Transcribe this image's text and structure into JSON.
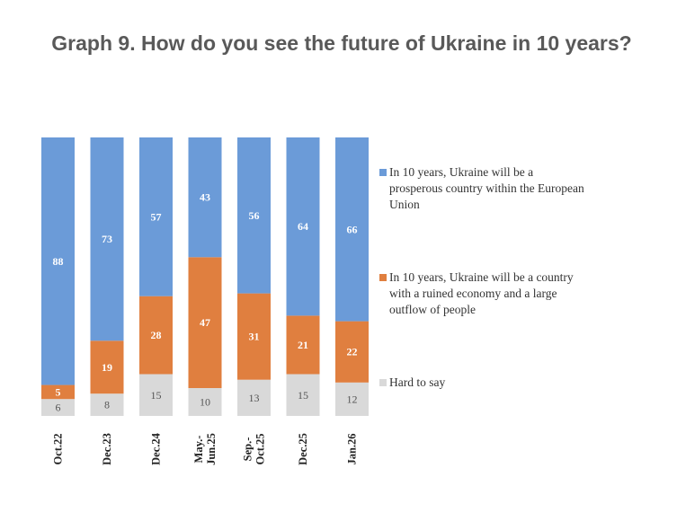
{
  "title": "Graph 9. How do you see the future of Ukraine in 10 years?",
  "chart_data": {
    "type": "bar",
    "stacked": true,
    "orientation": "vertical",
    "categories": [
      [
        "Oct.22"
      ],
      [
        "Dec.23"
      ],
      [
        "Dec.24"
      ],
      [
        "May.-",
        "Jun.25"
      ],
      [
        "Sep.-",
        "Oct.25"
      ],
      [
        "Dec.25"
      ],
      [
        "Jan.26"
      ]
    ],
    "series": [
      {
        "name": "Hard to say",
        "color": "#d9d9d9",
        "values": [
          6,
          8,
          15,
          10,
          13,
          15,
          12
        ]
      },
      {
        "name": "In 10 years, Ukraine will be a country with a ruined economy and a large outflow of people",
        "color": "#e07f3f",
        "values": [
          5,
          19,
          28,
          47,
          31,
          21,
          22
        ]
      },
      {
        "name": "In 10 years, Ukraine will be a prosperous country within the European Union",
        "color": "#6b9bd8",
        "values": [
          88,
          73,
          57,
          43,
          56,
          64,
          66
        ]
      }
    ],
    "legend": {
      "position": "right",
      "entries": [
        {
          "lines": [
            "In 10 years, Ukraine will be a",
            "prosperous country within the European",
            "Union"
          ],
          "color": "#6b9bd8"
        },
        {
          "lines": [
            "In 10 years, Ukraine will be a country",
            "with a ruined economy and a large",
            "outflow of people"
          ],
          "color": "#e07f3f"
        },
        {
          "lines": [
            "Hard to say"
          ],
          "color": "#d9d9d9"
        }
      ]
    },
    "ylim": [
      0,
      100
    ],
    "grid": false
  }
}
